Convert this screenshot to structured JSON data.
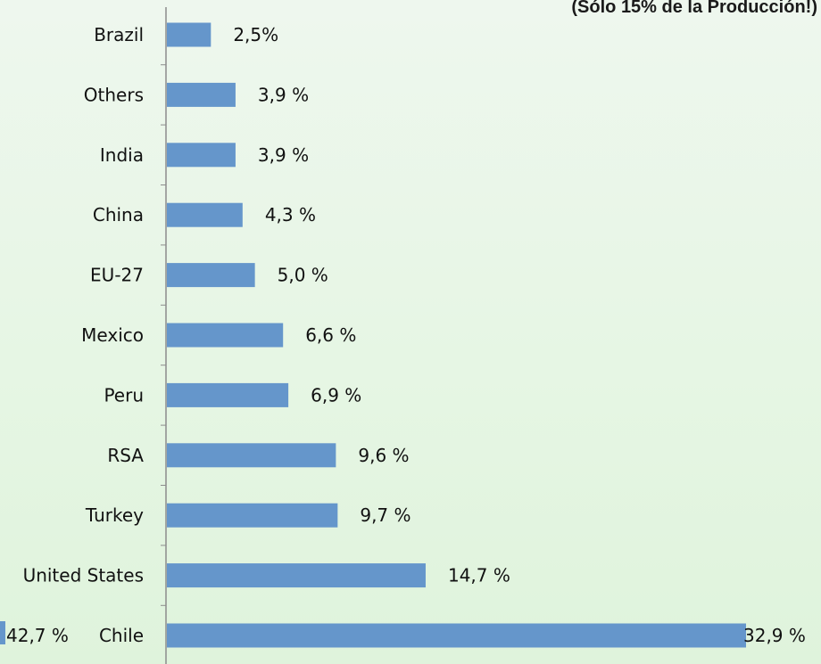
{
  "chart_data": {
    "type": "bar",
    "orientation": "horizontal",
    "title": "(Sólo 15% de la Producción!)",
    "categories": [
      "Brazil",
      "Others",
      "India",
      "China",
      "EU-27",
      "Mexico",
      "Peru",
      "RSA",
      "Turkey",
      "United States",
      "Chile"
    ],
    "values": [
      2.5,
      3.9,
      3.9,
      4.3,
      5.0,
      6.6,
      6.9,
      9.6,
      9.7,
      14.7,
      32.9
    ],
    "data_labels": [
      "2,5%",
      "3,9 %",
      "3,9 %",
      "4,3 %",
      "5,0 %",
      "6,6 %",
      "6,9 %",
      "9,6 %",
      "9,7 %",
      "14,7 %",
      "32,9 %"
    ],
    "extra_label": "42,7 %",
    "bar_color": "#6596cb",
    "axis_color": "#8c8c8c",
    "grid": false,
    "legend": "none"
  }
}
